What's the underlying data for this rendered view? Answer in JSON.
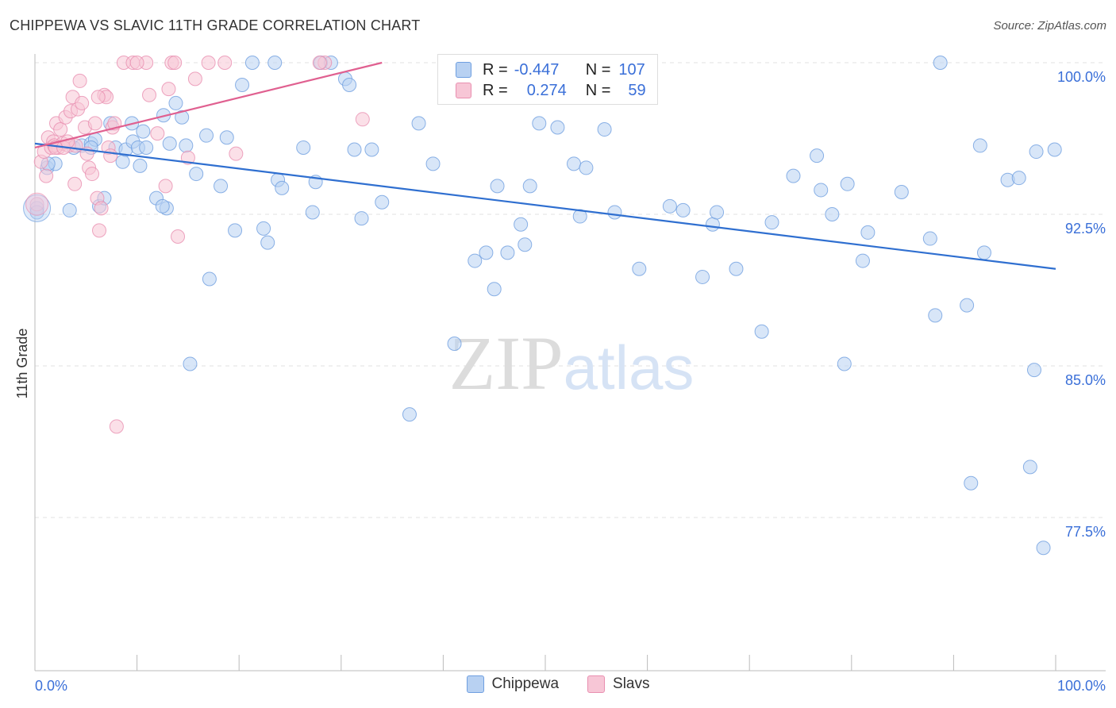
{
  "chart_data": {
    "type": "scatter",
    "title": "CHIPPEWA VS SLAVIC 11TH GRADE CORRELATION CHART",
    "source": "Source: ZipAtlas.com",
    "watermark": "ZIPatlas",
    "xlabel": "",
    "ylabel": "11th Grade",
    "xlim": [
      0,
      100
    ],
    "ylim": [
      70.0,
      100.0
    ],
    "x_tick_labels": [
      "0.0%",
      "100.0%"
    ],
    "y_ticks": [
      100.0,
      92.5,
      85.0,
      77.5
    ],
    "y_tick_labels": [
      "100.0%",
      "92.5%",
      "85.0%",
      "77.5%"
    ],
    "grid": true,
    "legend": {
      "r_label": "R =",
      "n_label": "N =",
      "entries": [
        {
          "name": "Chippewa",
          "r": "-0.447",
          "n": "107"
        },
        {
          "name": "Slavs",
          "r": "0.274",
          "n": "59"
        }
      ]
    },
    "series": [
      {
        "name": "Chippewa",
        "color": "#6f9fe0",
        "fill": "#b8d1f2",
        "trend": {
          "x0": 0,
          "y0": 96.0,
          "x1": 100,
          "y1": 89.8
        },
        "points": [
          [
            0.2,
            92.8
          ],
          [
            1.2,
            94.8
          ],
          [
            3.4,
            92.7
          ],
          [
            2.0,
            95.0
          ],
          [
            3.8,
            95.8
          ],
          [
            4.6,
            95.9
          ],
          [
            5.5,
            96.0
          ],
          [
            5.9,
            96.2
          ],
          [
            6.3,
            92.9
          ],
          [
            6.8,
            93.3
          ],
          [
            7.4,
            97.0
          ],
          [
            7.9,
            95.8
          ],
          [
            8.6,
            95.1
          ],
          [
            8.9,
            95.7
          ],
          [
            9.6,
            96.1
          ],
          [
            10.1,
            95.8
          ],
          [
            10.3,
            94.9
          ],
          [
            10.6,
            96.6
          ],
          [
            11.9,
            93.3
          ],
          [
            12.6,
            97.4
          ],
          [
            12.9,
            92.8
          ],
          [
            13.2,
            96.0
          ],
          [
            13.8,
            98.0
          ],
          [
            14.4,
            97.3
          ],
          [
            14.8,
            95.9
          ],
          [
            15.2,
            85.1
          ],
          [
            15.8,
            94.5
          ],
          [
            16.8,
            96.4
          ],
          [
            17.1,
            89.3
          ],
          [
            18.2,
            93.9
          ],
          [
            18.8,
            96.3
          ],
          [
            19.6,
            91.7
          ],
          [
            20.3,
            98.9
          ],
          [
            21.3,
            100.0
          ],
          [
            22.4,
            91.8
          ],
          [
            22.8,
            91.1
          ],
          [
            23.5,
            100.0
          ],
          [
            23.8,
            94.2
          ],
          [
            24.2,
            93.8
          ],
          [
            26.3,
            95.8
          ],
          [
            27.2,
            92.6
          ],
          [
            27.5,
            94.1
          ],
          [
            28.0,
            100.0
          ],
          [
            29.0,
            100.0
          ],
          [
            30.4,
            99.2
          ],
          [
            30.8,
            98.9
          ],
          [
            31.3,
            95.7
          ],
          [
            32.0,
            92.3
          ],
          [
            33.0,
            95.7
          ],
          [
            34.0,
            93.1
          ],
          [
            36.7,
            82.6
          ],
          [
            37.6,
            97.0
          ],
          [
            39.0,
            95.0
          ],
          [
            41.1,
            86.1
          ],
          [
            43.1,
            90.2
          ],
          [
            44.2,
            90.6
          ],
          [
            45.0,
            88.8
          ],
          [
            45.3,
            93.9
          ],
          [
            46.3,
            90.6
          ],
          [
            47.6,
            92.0
          ],
          [
            48.0,
            91.0
          ],
          [
            48.5,
            93.9
          ],
          [
            49.4,
            97.0
          ],
          [
            51.2,
            96.8
          ],
          [
            52.8,
            95.0
          ],
          [
            53.4,
            92.4
          ],
          [
            54.0,
            94.8
          ],
          [
            55.8,
            96.7
          ],
          [
            56.8,
            92.6
          ],
          [
            59.2,
            89.8
          ],
          [
            62.2,
            92.9
          ],
          [
            63.5,
            92.7
          ],
          [
            65.4,
            89.4
          ],
          [
            66.4,
            92.0
          ],
          [
            66.8,
            92.6
          ],
          [
            68.7,
            89.8
          ],
          [
            71.2,
            86.7
          ],
          [
            72.2,
            92.1
          ],
          [
            74.3,
            94.4
          ],
          [
            76.6,
            95.4
          ],
          [
            77.0,
            93.7
          ],
          [
            78.1,
            92.5
          ],
          [
            79.3,
            85.1
          ],
          [
            79.6,
            94.0
          ],
          [
            81.1,
            90.2
          ],
          [
            81.6,
            91.6
          ],
          [
            84.9,
            93.6
          ],
          [
            87.7,
            91.3
          ],
          [
            88.2,
            87.5
          ],
          [
            88.7,
            100.0
          ],
          [
            91.3,
            88.0
          ],
          [
            91.7,
            79.2
          ],
          [
            92.6,
            95.9
          ],
          [
            93.0,
            90.6
          ],
          [
            95.3,
            94.2
          ],
          [
            96.4,
            94.3
          ],
          [
            97.5,
            80.0
          ],
          [
            97.9,
            84.8
          ],
          [
            98.1,
            95.6
          ],
          [
            98.8,
            76.0
          ],
          [
            99.9,
            95.7
          ],
          [
            12.5,
            92.9
          ],
          [
            9.5,
            97.0
          ],
          [
            1.3,
            95.0
          ],
          [
            0.2,
            92.6
          ],
          [
            5.5,
            95.8
          ],
          [
            10.9,
            95.8
          ]
        ]
      },
      {
        "name": "Slavs",
        "color": "#e98fb0",
        "fill": "#f7c6d6",
        "trend": {
          "x0": 0,
          "y0": 95.8,
          "x1": 34,
          "y1": 100.0
        },
        "points": [
          [
            0.2,
            93.0
          ],
          [
            0.6,
            95.1
          ],
          [
            0.9,
            95.6
          ],
          [
            1.1,
            94.4
          ],
          [
            1.3,
            96.3
          ],
          [
            1.6,
            95.8
          ],
          [
            1.8,
            96.1
          ],
          [
            2.1,
            97.0
          ],
          [
            2.3,
            95.8
          ],
          [
            2.5,
            96.7
          ],
          [
            2.7,
            96.0
          ],
          [
            3.0,
            97.3
          ],
          [
            3.3,
            95.9
          ],
          [
            3.5,
            97.6
          ],
          [
            3.7,
            98.3
          ],
          [
            3.9,
            94.0
          ],
          [
            4.2,
            97.7
          ],
          [
            4.4,
            99.1
          ],
          [
            4.6,
            98.0
          ],
          [
            4.9,
            96.8
          ],
          [
            5.1,
            95.5
          ],
          [
            5.3,
            94.8
          ],
          [
            5.6,
            94.5
          ],
          [
            5.9,
            97.0
          ],
          [
            6.1,
            93.3
          ],
          [
            6.3,
            91.7
          ],
          [
            6.5,
            92.8
          ],
          [
            6.8,
            98.4
          ],
          [
            7.0,
            98.3
          ],
          [
            7.2,
            95.8
          ],
          [
            7.4,
            95.4
          ],
          [
            7.6,
            96.8
          ],
          [
            7.8,
            97.0
          ],
          [
            8.0,
            82.0
          ],
          [
            8.7,
            100.0
          ],
          [
            9.6,
            100.0
          ],
          [
            10.9,
            100.0
          ],
          [
            11.2,
            98.4
          ],
          [
            12.0,
            96.5
          ],
          [
            12.8,
            93.9
          ],
          [
            13.1,
            98.7
          ],
          [
            13.4,
            100.0
          ],
          [
            13.7,
            100.0
          ],
          [
            14.0,
            91.4
          ],
          [
            15.0,
            95.3
          ],
          [
            15.7,
            99.2
          ],
          [
            17.0,
            100.0
          ],
          [
            18.6,
            100.0
          ],
          [
            19.7,
            95.5
          ],
          [
            28.4,
            100.0
          ],
          [
            32.1,
            97.2
          ],
          [
            1.9,
            95.9
          ],
          [
            2.0,
            95.8
          ],
          [
            4.0,
            95.9
          ],
          [
            2.8,
            95.8
          ],
          [
            3.2,
            96.1
          ],
          [
            6.2,
            98.3
          ],
          [
            10.0,
            100.0
          ],
          [
            27.9,
            100.0
          ]
        ]
      }
    ]
  }
}
